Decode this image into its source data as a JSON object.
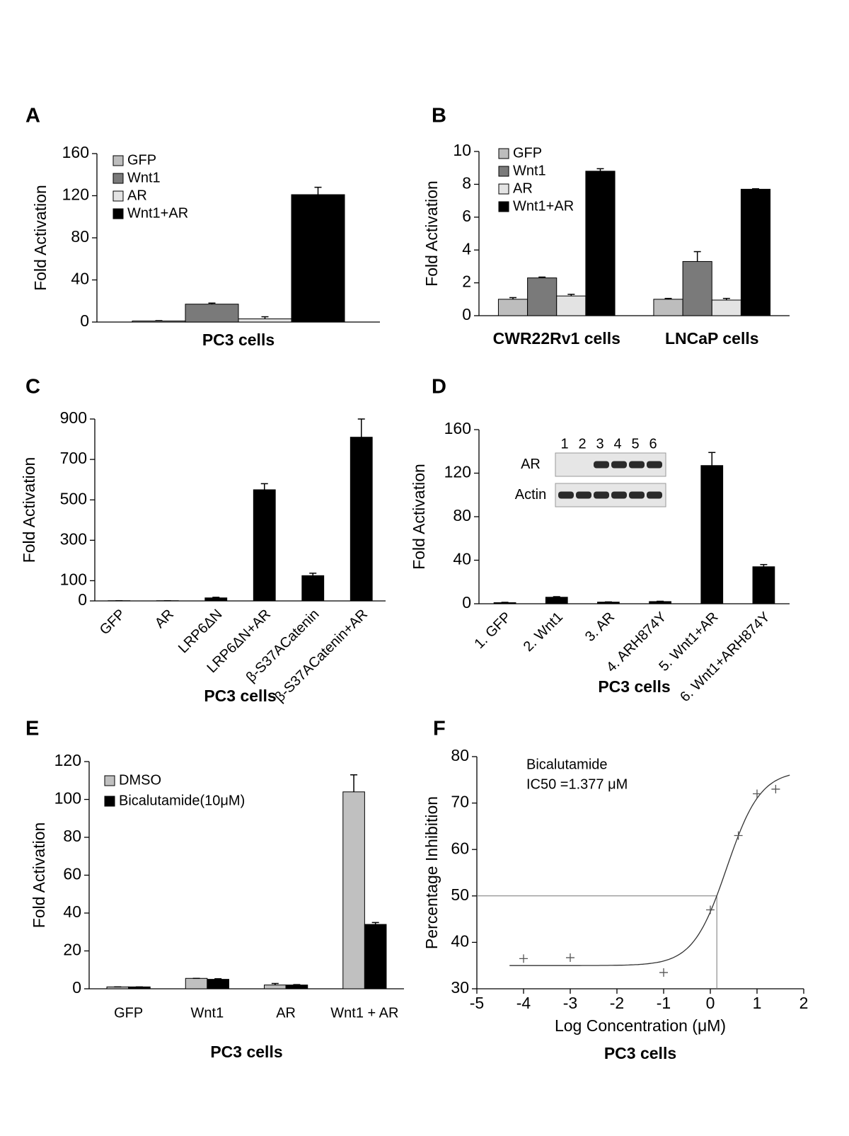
{
  "chart_data": [
    {
      "type": "bar",
      "panel": "A",
      "ylabel": "Fold Activation",
      "caption": "PC3 cells",
      "categories": [
        null
      ],
      "series": [
        {
          "name": "GFP",
          "color": "#bdbdbd",
          "values": [
            1
          ],
          "errors": [
            0.3
          ]
        },
        {
          "name": "Wnt1",
          "color": "#7a7a7a",
          "values": [
            17
          ],
          "errors": [
            1
          ]
        },
        {
          "name": "AR",
          "color": "#e3e3e3",
          "values": [
            3
          ],
          "errors": [
            2
          ]
        },
        {
          "name": "Wnt1+AR",
          "color": "#000000",
          "values": [
            121
          ],
          "errors": [
            7
          ]
        }
      ],
      "ylim": [
        0,
        160
      ],
      "yticks": [
        0,
        40,
        80,
        120,
        160
      ],
      "legend": "upper left"
    },
    {
      "type": "bar",
      "panel": "B",
      "ylabel": "Fold Activation",
      "category_bold": true,
      "categories": [
        "CWR22Rv1 cells",
        "LNCaP cells"
      ],
      "series": [
        {
          "name": "GFP",
          "color": "#bdbdbd",
          "values": [
            1,
            1
          ],
          "errors": [
            0.1,
            0.05
          ]
        },
        {
          "name": "Wnt1",
          "color": "#7a7a7a",
          "values": [
            2.3,
            3.3
          ],
          "errors": [
            0.05,
            0.6
          ]
        },
        {
          "name": "AR",
          "color": "#e3e3e3",
          "values": [
            1.2,
            0.95
          ],
          "errors": [
            0.1,
            0.1
          ]
        },
        {
          "name": "Wnt1+AR",
          "color": "#000000",
          "values": [
            8.8,
            7.7
          ],
          "errors": [
            0.15,
            0.03
          ]
        }
      ],
      "ylim": [
        0,
        10
      ],
      "yticks": [
        0,
        2,
        4,
        6,
        8,
        10
      ],
      "legend": "upper left"
    },
    {
      "type": "bar",
      "panel": "C",
      "ylabel": "Fold Activation",
      "caption": "PC3 cells",
      "categories": [
        "GFP",
        "AR",
        "LRP6ΔN",
        "LRP6ΔN+AR",
        "β-S37ACatenin",
        "β-S37ACatenin+AR"
      ],
      "values": [
        1,
        1,
        15,
        550,
        125,
        810
      ],
      "errors": [
        0,
        0,
        3,
        30,
        12,
        90
      ],
      "color": "#000000",
      "ylim": [
        0,
        900
      ],
      "yticks": [
        0,
        100,
        300,
        500,
        700,
        900
      ]
    },
    {
      "type": "bar",
      "panel": "D",
      "ylabel": "Fold Activation",
      "caption": "PC3 cells",
      "categories": [
        "1. GFP",
        "2. Wnt1",
        "3. AR",
        "4. ARH874Y",
        "5. Wnt1+AR",
        "6. Wnt1+ARH874Y"
      ],
      "values": [
        1,
        6,
        1.5,
        2,
        127,
        34
      ],
      "errors": [
        0.3,
        0.5,
        0.2,
        0.3,
        12,
        2
      ],
      "color": "#000000",
      "ylim": [
        0,
        160
      ],
      "yticks": [
        0,
        40,
        80,
        120,
        160
      ],
      "inset": {
        "lanes": [
          "1",
          "2",
          "3",
          "4",
          "5",
          "6"
        ],
        "rows": [
          {
            "name": "AR",
            "bands": [
              false,
              false,
              true,
              true,
              true,
              true
            ]
          },
          {
            "name": "Actin",
            "bands": [
              true,
              true,
              true,
              true,
              true,
              true
            ]
          }
        ]
      }
    },
    {
      "type": "bar",
      "panel": "E",
      "ylabel": "Fold Activation",
      "caption": "PC3 cells",
      "categories": [
        "GFP",
        "Wnt1",
        "AR",
        "Wnt1 + AR"
      ],
      "series": [
        {
          "name": "DMSO",
          "color": "#c0c0c0",
          "values": [
            1,
            5.5,
            2,
            104
          ],
          "errors": [
            0,
            0,
            0.8,
            9
          ]
        },
        {
          "name": "Bicalutamide(10μM)",
          "color": "#000000",
          "values": [
            1,
            5,
            2,
            34
          ],
          "errors": [
            0,
            0.3,
            0.2,
            1
          ]
        }
      ],
      "ylim": [
        0,
        120
      ],
      "yticks": [
        0,
        20,
        40,
        60,
        80,
        100,
        120
      ],
      "legend": "upper left"
    },
    {
      "type": "scatter",
      "panel": "F",
      "ylabel": "Percentage Inhibition",
      "xlabel": "Log Concentration (μM)",
      "caption": "PC3 cells",
      "annotations": [
        "Bicalutamide",
        "IC50 =1.377 μM"
      ],
      "x": [
        -4,
        -3,
        -1,
        0,
        0.6,
        1,
        1.4
      ],
      "values": [
        36.5,
        36.7,
        33.5,
        47,
        63,
        72,
        73
      ],
      "color": "#555555",
      "fit": {
        "bottom": 35,
        "top": 77,
        "log_ec50": 0.35,
        "hill": 1.2,
        "xrange": [
          -4.3,
          1.7
        ]
      },
      "ref_x": 0.139,
      "ref_y": 50,
      "xlim": [
        -5,
        2
      ],
      "xticks": [
        -5,
        -4,
        -3,
        -2,
        -1,
        0,
        1,
        2
      ],
      "ylim": [
        30,
        80
      ],
      "yticks": [
        30,
        40,
        50,
        60,
        70,
        80
      ]
    }
  ]
}
